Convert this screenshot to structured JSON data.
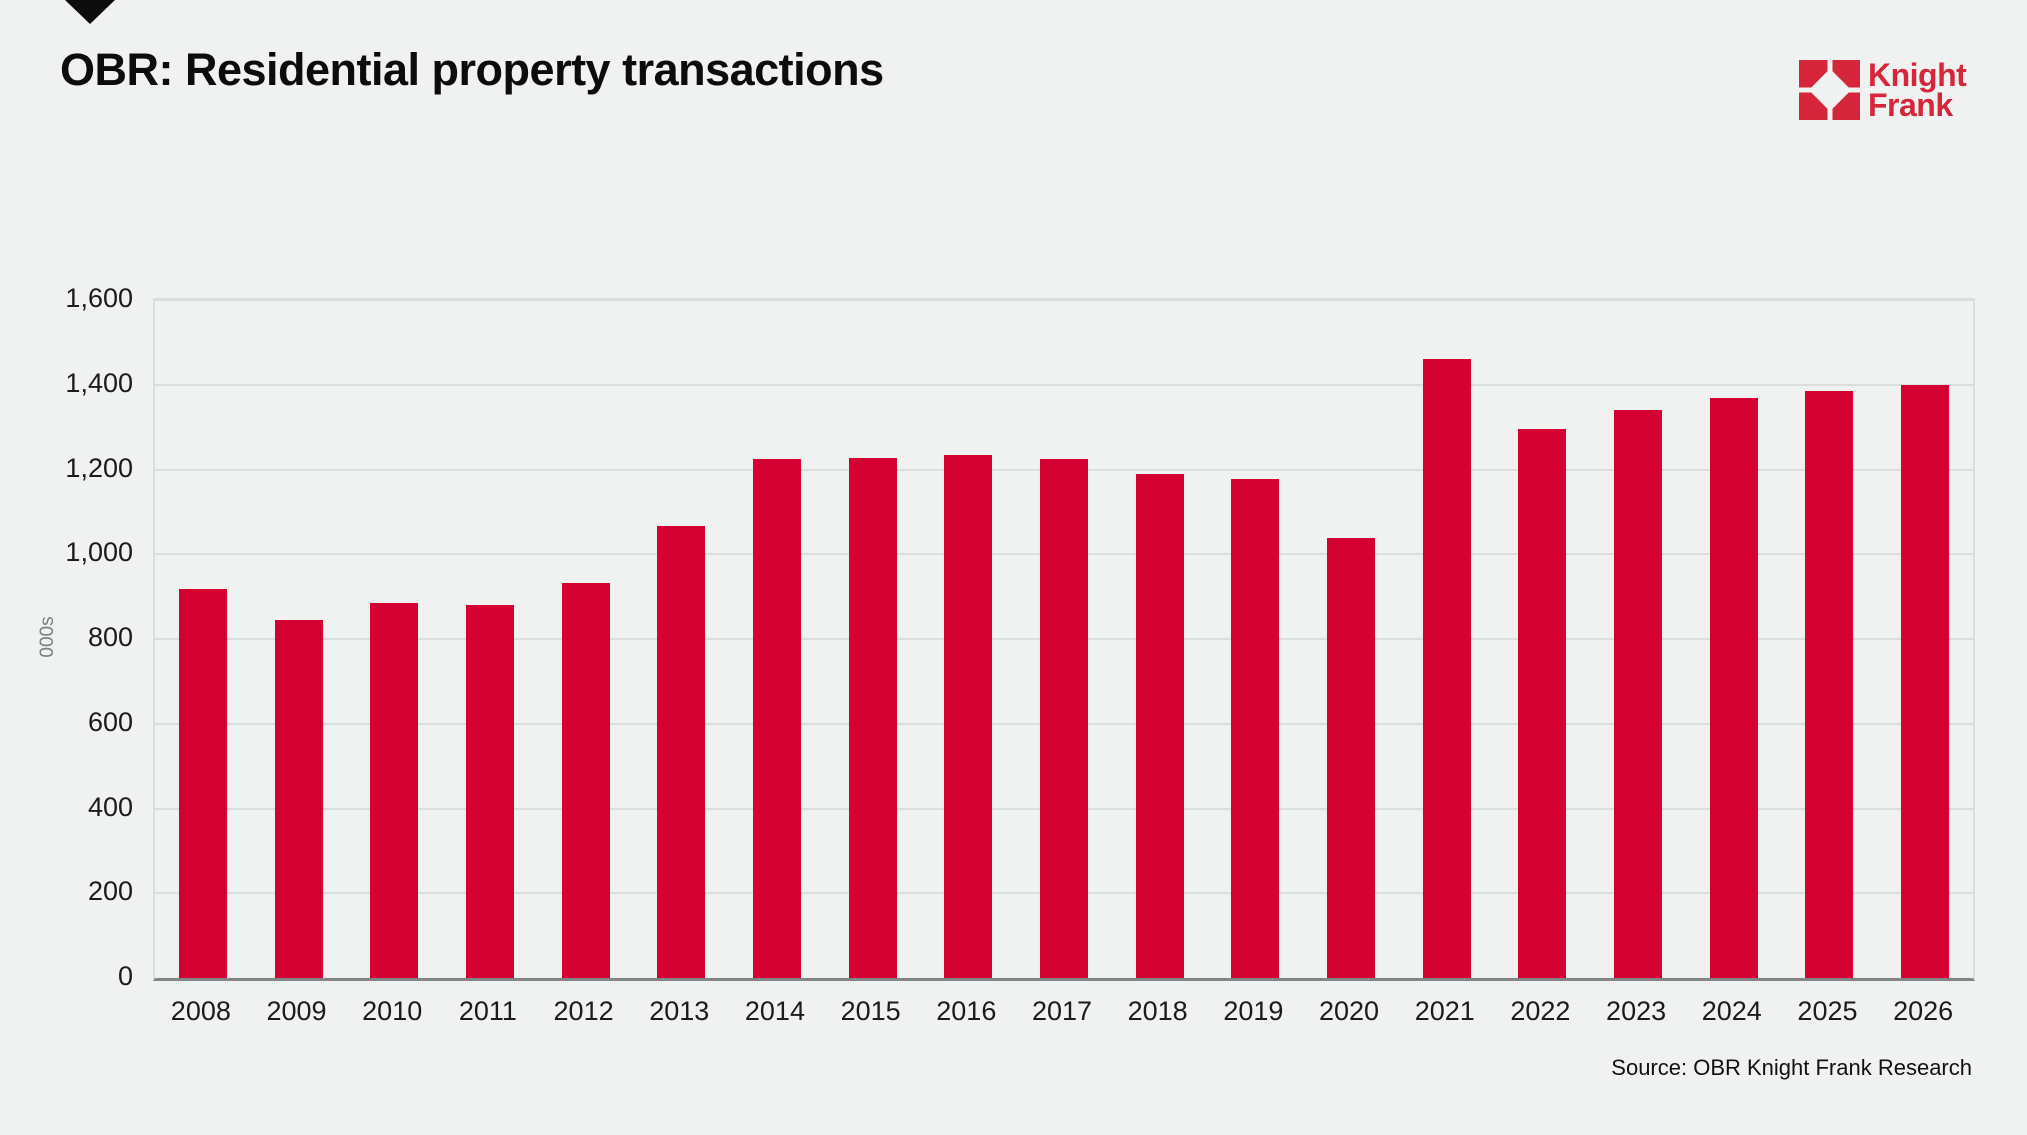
{
  "page": {
    "background_color": "#eff2f0",
    "title": "OBR: Residential property transactions",
    "source": "Source: OBR Knight Frank Research"
  },
  "logo": {
    "line1": "Knight",
    "line2": "Frank",
    "color": "#d6263c"
  },
  "chart_data": {
    "type": "bar",
    "title": "OBR: Residential property transactions",
    "xlabel": "",
    "ylabel": "000s",
    "ylim": [
      0,
      1600
    ],
    "yticks": [
      0,
      200,
      400,
      600,
      800,
      1000,
      1200,
      1400,
      1600
    ],
    "ytick_labels": [
      "0",
      "200",
      "400",
      "600",
      "800",
      "1,000",
      "1,200",
      "1,400",
      "1,600"
    ],
    "grid": true,
    "legend": false,
    "bar_color": "#d50032",
    "gridline_color": "#dcdedd",
    "categories": [
      "2008",
      "2009",
      "2010",
      "2011",
      "2012",
      "2013",
      "2014",
      "2015",
      "2016",
      "2017",
      "2018",
      "2019",
      "2020",
      "2021",
      "2022",
      "2023",
      "2024",
      "2025",
      "2026"
    ],
    "values": [
      918,
      846,
      885,
      881,
      932,
      1066,
      1224,
      1228,
      1235,
      1224,
      1190,
      1177,
      1038,
      1461,
      1296,
      1341,
      1369,
      1385,
      1400
    ]
  }
}
